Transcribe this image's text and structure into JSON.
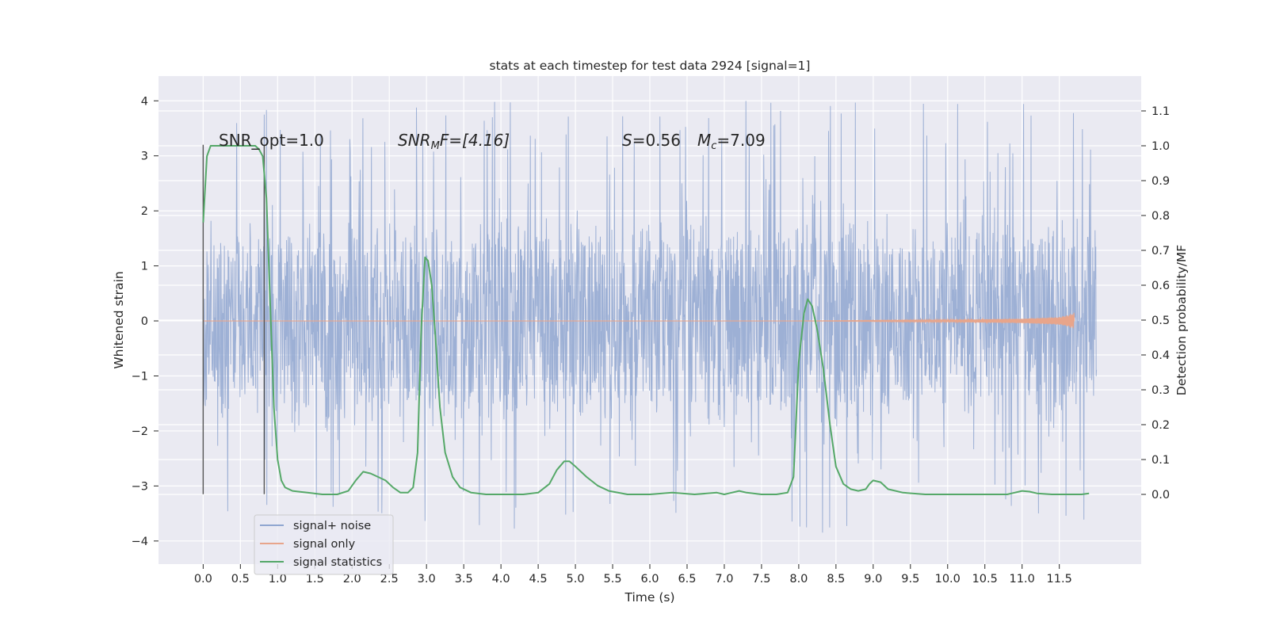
{
  "chart_data": {
    "type": "line",
    "title": "stats at each timestep for test data 2924 [signal=1]",
    "xlabel": "Time (s)",
    "ylabel": "Whitened strain",
    "ylabel_right": "Detection probability/MF",
    "xlim": [
      -0.6,
      12.6
    ],
    "ylim": [
      -4.42,
      4.45
    ],
    "ylim_right": [
      -0.2,
      1.2
    ],
    "grid": true,
    "legend_position": "lower-left",
    "x_ticks": [
      "0.0",
      "0.5",
      "1.0",
      "1.5",
      "2.0",
      "2.5",
      "3.0",
      "3.5",
      "4.0",
      "4.5",
      "5.0",
      "5.5",
      "6.0",
      "6.5",
      "7.0",
      "7.5",
      "8.0",
      "8.5",
      "9.0",
      "9.5",
      "10.0",
      "10.5",
      "11.0",
      "11.5"
    ],
    "y_ticks": [
      "4",
      "3",
      "2",
      "1",
      "0",
      "−1",
      "−2",
      "−3",
      "−4"
    ],
    "y_ticks_right": [
      "1.1",
      "1.0",
      "0.9",
      "0.8",
      "0.7",
      "0.6",
      "0.5",
      "0.4",
      "0.3",
      "0.2",
      "0.1",
      "0.0"
    ],
    "annotations": {
      "snr_opt": "SNR_opt=1.0",
      "snr_mf_var": "SNR",
      "snr_mf_sub": "M",
      "snr_mf_rest": "F=[4.16]",
      "s_var": "S",
      "s_rest": "=0.56",
      "mc_var": "M",
      "mc_sub": "c",
      "mc_rest": "=7.09"
    },
    "vertical_markers": [
      0.0,
      0.82
    ],
    "series": [
      {
        "name": "signal+ noise",
        "color": "#8fa6d0",
        "x_range": [
          0.0,
          12.0
        ],
        "notes_values": "dense noise, typical band approx -1.7 to 2.0, peaks up to ~4.1 and down to ~-4.0"
      },
      {
        "name": "signal only",
        "color": "#e8a58b",
        "x": [
          0.0,
          8.0,
          9.0,
          10.0,
          11.0,
          11.5,
          11.6,
          11.7
        ],
        "y": [
          0.0,
          0.0,
          0.01,
          0.02,
          0.04,
          0.07,
          0.1,
          0.15
        ]
      },
      {
        "name": "signal statistics",
        "color": "#55a868",
        "axis": "right",
        "x": [
          0.0,
          0.05,
          0.1,
          0.15,
          0.2,
          0.3,
          0.4,
          0.5,
          0.6,
          0.7,
          0.75,
          0.8,
          0.85,
          0.9,
          0.95,
          1.0,
          1.05,
          1.1,
          1.2,
          1.4,
          1.6,
          1.8,
          1.95,
          2.05,
          2.15,
          2.25,
          2.35,
          2.45,
          2.55,
          2.65,
          2.75,
          2.82,
          2.88,
          2.93,
          2.98,
          3.02,
          3.07,
          3.12,
          3.18,
          3.25,
          3.35,
          3.45,
          3.6,
          3.8,
          4.0,
          4.3,
          4.5,
          4.65,
          4.75,
          4.85,
          4.92,
          5.0,
          5.15,
          5.3,
          5.45,
          5.7,
          6.0,
          6.3,
          6.6,
          6.9,
          7.0,
          7.1,
          7.2,
          7.3,
          7.5,
          7.7,
          7.85,
          7.93,
          8.0,
          8.07,
          8.12,
          8.18,
          8.25,
          8.33,
          8.42,
          8.5,
          8.6,
          8.7,
          8.8,
          8.9,
          8.95,
          9.0,
          9.1,
          9.2,
          9.4,
          9.7,
          10.0,
          10.4,
          10.8,
          10.9,
          11.0,
          11.1,
          11.2,
          11.4,
          11.6,
          11.8,
          11.9
        ],
        "y": [
          0.78,
          0.97,
          1.0,
          1.0,
          1.0,
          1.0,
          1.0,
          1.0,
          1.0,
          1.0,
          0.99,
          0.97,
          0.85,
          0.55,
          0.25,
          0.1,
          0.04,
          0.02,
          0.01,
          0.005,
          0.0,
          0.0,
          0.01,
          0.04,
          0.065,
          0.06,
          0.05,
          0.04,
          0.02,
          0.005,
          0.005,
          0.02,
          0.12,
          0.48,
          0.68,
          0.67,
          0.6,
          0.45,
          0.25,
          0.12,
          0.05,
          0.02,
          0.005,
          0.0,
          0.0,
          0.0,
          0.005,
          0.03,
          0.07,
          0.095,
          0.095,
          0.08,
          0.05,
          0.025,
          0.01,
          0.0,
          0.0,
          0.005,
          0.0,
          0.005,
          0.0,
          0.005,
          0.01,
          0.005,
          0.0,
          0.0,
          0.005,
          0.05,
          0.38,
          0.52,
          0.56,
          0.54,
          0.47,
          0.36,
          0.2,
          0.08,
          0.03,
          0.015,
          0.01,
          0.015,
          0.03,
          0.04,
          0.035,
          0.015,
          0.005,
          0.0,
          0.0,
          0.0,
          0.0,
          0.005,
          0.01,
          0.008,
          0.003,
          0.0,
          0.0,
          0.0,
          0.003
        ]
      }
    ]
  }
}
